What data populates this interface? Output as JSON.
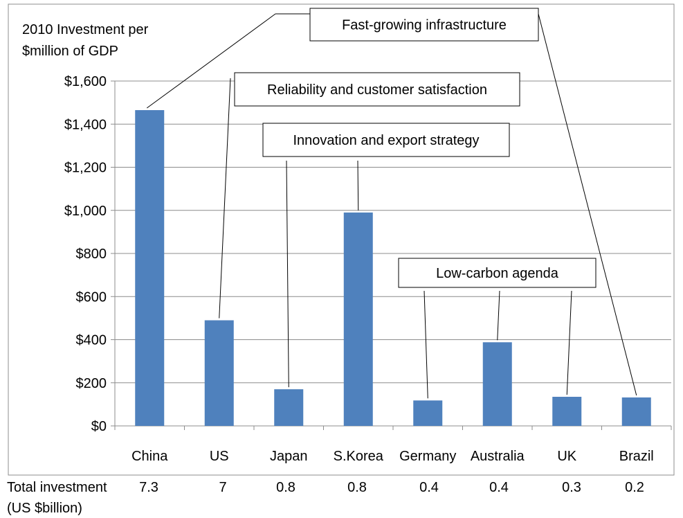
{
  "chart_data": {
    "type": "bar",
    "ylabel": [
      "2010 Investment per",
      "$million of GDP"
    ],
    "categories": [
      "China",
      "US",
      "Japan",
      "S.Korea",
      "Germany",
      "Australia",
      "UK",
      "Brazil"
    ],
    "values": [
      1465,
      490,
      170,
      990,
      118,
      388,
      135,
      132
    ],
    "ylim": [
      0,
      1600
    ],
    "yticks": [
      0,
      200,
      400,
      600,
      800,
      1000,
      1200,
      1400,
      1600
    ],
    "ytick_labels": [
      "$0",
      "$200",
      "$400",
      "$600",
      "$800",
      "$1,000",
      "$1,200",
      "$1,400",
      "$1,600"
    ],
    "bar_color": "#4f81bd",
    "grid": true,
    "annotations": [
      {
        "text": "Fast-growing infrastructure",
        "targets": [
          "China",
          "Brazil"
        ]
      },
      {
        "text": "Reliability and customer satisfaction",
        "targets": [
          "US"
        ]
      },
      {
        "text": "Innovation and export strategy",
        "targets": [
          "Japan",
          "S.Korea"
        ]
      },
      {
        "text": "Low-carbon agenda",
        "targets": [
          "Germany",
          "Australia",
          "UK"
        ]
      }
    ]
  },
  "total_investment": {
    "label_line1": "Total investment",
    "label_line2": "(US $billion)",
    "values": [
      "7.3",
      "7",
      "0.8",
      "0.8",
      "0.4",
      "0.4",
      "0.3",
      "0.2"
    ]
  }
}
